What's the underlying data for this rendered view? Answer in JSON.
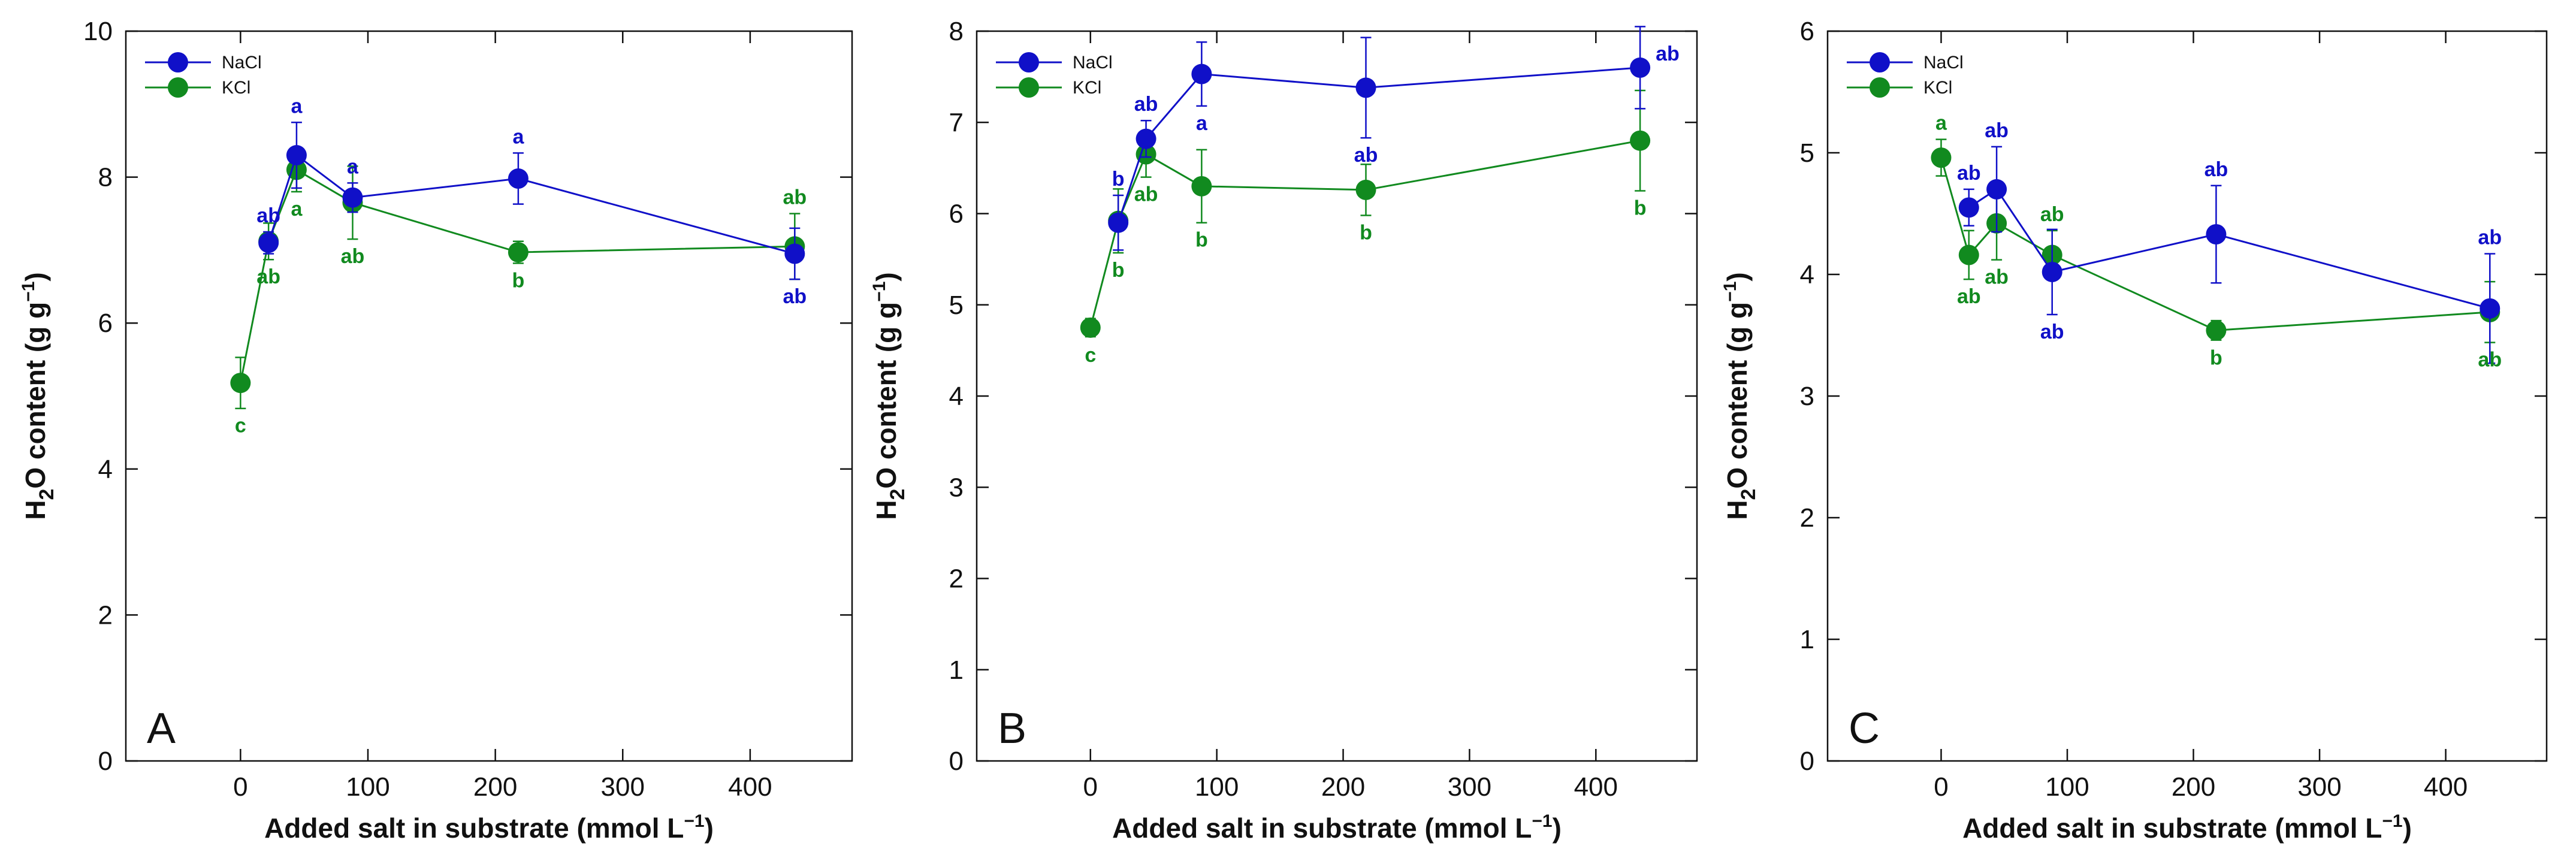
{
  "colors": {
    "NaCl": "#1010c8",
    "KCl": "#118a1f",
    "axis": "#111111"
  },
  "chart_data": [
    {
      "type": "line",
      "panel_label": "A",
      "xlabel": "Added salt in substrate (mmol L",
      "xlabel_sup": "−1",
      "xlabel_tail": ")",
      "ylabel_main": "H",
      "ylabel_sub": "2",
      "ylabel_rest": "O content (g g",
      "ylabel_sup": "−1",
      "ylabel_tail": ")",
      "xlim": [
        -90,
        480
      ],
      "ylim": [
        0,
        10
      ],
      "xticks": [
        0,
        100,
        200,
        300,
        400
      ],
      "yticks": [
        0,
        2,
        4,
        6,
        8,
        10
      ],
      "legend": [
        "NaCl",
        "KCl"
      ],
      "series": [
        {
          "name": "NaCl",
          "x": [
            22,
            44,
            88,
            218,
            435
          ],
          "y": [
            7.1,
            8.3,
            7.72,
            7.98,
            6.95
          ],
          "err": [
            0.15,
            0.45,
            0.2,
            0.35,
            0.35
          ],
          "labels": [
            "ab",
            "a",
            "a",
            "a",
            "ab"
          ],
          "label_pos": [
            "above",
            "above",
            "above",
            "above",
            "below"
          ]
        },
        {
          "name": "KCl",
          "x": [
            0,
            22,
            44,
            88,
            218,
            435
          ],
          "y": [
            5.18,
            7.12,
            8.1,
            7.65,
            6.97,
            7.05
          ],
          "err": [
            0.35,
            0.25,
            0.3,
            0.5,
            0.15,
            0.45
          ],
          "labels": [
            "c",
            "ab",
            "a",
            "ab",
            "b",
            "ab"
          ],
          "label_pos": [
            "below",
            "below",
            "below",
            "below",
            "below",
            "above"
          ]
        }
      ]
    },
    {
      "type": "line",
      "panel_label": "B",
      "xlabel": "Added salt in substrate (mmol L",
      "xlabel_sup": "−1",
      "xlabel_tail": ")",
      "ylabel_main": "H",
      "ylabel_sub": "2",
      "ylabel_rest": "O content (g g",
      "ylabel_sup": "−1",
      "ylabel_tail": ")",
      "xlim": [
        -90,
        480
      ],
      "ylim": [
        0,
        8
      ],
      "xticks": [
        0,
        100,
        200,
        300,
        400
      ],
      "yticks": [
        0,
        1,
        2,
        3,
        4,
        5,
        6,
        7,
        8
      ],
      "legend": [
        "NaCl",
        "KCl"
      ],
      "series": [
        {
          "name": "NaCl",
          "x": [
            22,
            44,
            88,
            218,
            435
          ],
          "y": [
            5.9,
            6.82,
            7.53,
            7.38,
            7.6
          ],
          "err": [
            0.3,
            0.2,
            0.35,
            0.55,
            0.45
          ],
          "labels": [
            "b",
            "ab",
            "a",
            "ab",
            "ab"
          ],
          "label_pos": [
            "above",
            "above",
            "below",
            "below",
            "right"
          ]
        },
        {
          "name": "KCl",
          "x": [
            0,
            22,
            44,
            88,
            218,
            435
          ],
          "y": [
            4.75,
            5.92,
            6.65,
            6.3,
            6.26,
            6.8
          ],
          "err": [
            0.1,
            0.35,
            0.25,
            0.4,
            0.28,
            0.55
          ],
          "labels": [
            "c",
            "b",
            "ab",
            "b",
            "b",
            "b"
          ],
          "label_pos": [
            "below",
            "below",
            "below",
            "below",
            "below",
            "below"
          ]
        }
      ]
    },
    {
      "type": "line",
      "panel_label": "C",
      "xlabel": "Added salt in substrate (mmol L",
      "xlabel_sup": "−1",
      "xlabel_tail": ")",
      "ylabel_main": "H",
      "ylabel_sub": "2",
      "ylabel_rest": "O content (g g",
      "ylabel_sup": "−1",
      "ylabel_tail": ")",
      "xlim": [
        -90,
        480
      ],
      "ylim": [
        0,
        6
      ],
      "xticks": [
        0,
        100,
        200,
        300,
        400
      ],
      "yticks": [
        0,
        1,
        2,
        3,
        4,
        5,
        6
      ],
      "legend": [
        "NaCl",
        "KCl"
      ],
      "series": [
        {
          "name": "NaCl",
          "x": [
            22,
            44,
            88,
            218,
            435
          ],
          "y": [
            4.55,
            4.7,
            4.02,
            4.33,
            3.72
          ],
          "err": [
            0.15,
            0.35,
            0.35,
            0.4,
            0.45
          ],
          "labels": [
            "ab",
            "ab",
            "ab",
            "ab",
            "ab"
          ],
          "label_pos": [
            "above",
            "above",
            "below",
            "above",
            "above"
          ]
        },
        {
          "name": "KCl",
          "x": [
            0,
            22,
            44,
            88,
            218,
            435
          ],
          "y": [
            4.96,
            4.16,
            4.42,
            4.16,
            3.54,
            3.69
          ],
          "err": [
            0.15,
            0.2,
            0.3,
            0.2,
            0.08,
            0.25
          ],
          "labels": [
            "a",
            "ab",
            "ab",
            "ab",
            "b",
            "ab"
          ],
          "label_pos": [
            "above",
            "below",
            "below",
            "above",
            "below",
            "below"
          ]
        }
      ]
    }
  ]
}
